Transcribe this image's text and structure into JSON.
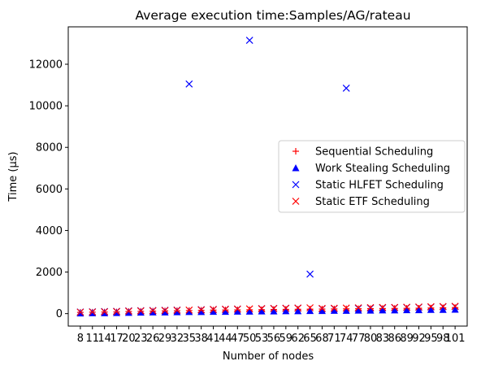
{
  "chart_data": {
    "type": "scatter",
    "title": "Average execution time:Samples/AG/rateau",
    "xlabel": "Number of nodes",
    "ylabel": "Time (µs)",
    "x": [
      8,
      11,
      14,
      17,
      20,
      23,
      26,
      29,
      32,
      35,
      38,
      41,
      44,
      47,
      50,
      53,
      56,
      59,
      62,
      65,
      68,
      71,
      74,
      77,
      80,
      83,
      86,
      89,
      92,
      95,
      98,
      101
    ],
    "ylim": [
      -600,
      13800
    ],
    "yticks": [
      0,
      2000,
      4000,
      6000,
      8000,
      10000,
      12000
    ],
    "legend_position": "center-right",
    "series": [
      {
        "name": "Sequential Scheduling",
        "marker": "+",
        "color": "#ff0000",
        "values": [
          60,
          70,
          75,
          80,
          100,
          110,
          120,
          130,
          140,
          150,
          160,
          170,
          175,
          180,
          185,
          190,
          200,
          205,
          210,
          215,
          220,
          225,
          230,
          235,
          240,
          245,
          250,
          255,
          260,
          270,
          280,
          290
        ]
      },
      {
        "name": "Work Stealing Scheduling",
        "marker": "triangle",
        "color": "#0000ff",
        "values": [
          20,
          30,
          30,
          40,
          50,
          60,
          70,
          70,
          80,
          90,
          90,
          100,
          100,
          110,
          110,
          120,
          120,
          130,
          130,
          140,
          140,
          150,
          150,
          160,
          160,
          170,
          170,
          180,
          180,
          190,
          190,
          200
        ]
      },
      {
        "name": "Static HLFET Scheduling",
        "marker": "x",
        "color": "#0000ff",
        "values": [
          80,
          90,
          100,
          110,
          130,
          140,
          150,
          160,
          170,
          11050,
          190,
          200,
          210,
          220,
          13150,
          240,
          250,
          260,
          270,
          1900,
          240,
          250,
          10850,
          260,
          270,
          280,
          290,
          300,
          310,
          320,
          330,
          340
        ]
      },
      {
        "name": "Static ETF Scheduling",
        "marker": "x",
        "color": "#ff0000",
        "values": [
          70,
          80,
          90,
          100,
          120,
          130,
          140,
          150,
          160,
          170,
          180,
          200,
          210,
          220,
          230,
          240,
          250,
          260,
          270,
          280,
          250,
          260,
          270,
          280,
          290,
          300,
          300,
          310,
          320,
          330,
          340,
          350
        ]
      }
    ]
  }
}
